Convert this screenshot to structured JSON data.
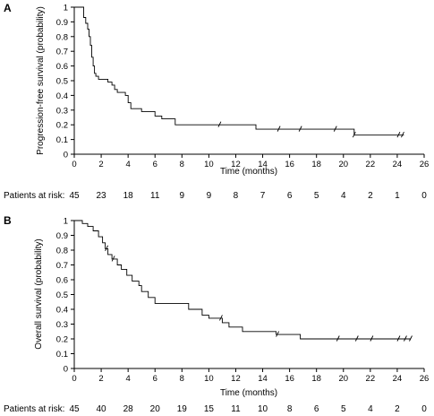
{
  "chart_data": [
    {
      "type": "line",
      "panel_label": "A",
      "xlabel": "Time (months)",
      "ylabel": "Progression-free survival (probability)",
      "xlim": [
        0,
        26
      ],
      "ylim": [
        0,
        1
      ],
      "x_ticks": [
        0,
        2,
        4,
        6,
        8,
        10,
        12,
        14,
        16,
        18,
        20,
        22,
        24,
        26
      ],
      "y_ticks": [
        "0",
        "0.1",
        "0.2",
        "0.3",
        "0.4",
        "0.5",
        "0.6",
        "0.7",
        "0.8",
        "0.9",
        "1"
      ],
      "grid": false,
      "step": true,
      "points": [
        [
          0,
          1.0
        ],
        [
          0.7,
          1.0
        ],
        [
          0.7,
          0.93
        ],
        [
          0.85,
          0.93
        ],
        [
          0.85,
          0.89
        ],
        [
          1.0,
          0.89
        ],
        [
          1.0,
          0.85
        ],
        [
          1.1,
          0.85
        ],
        [
          1.1,
          0.8
        ],
        [
          1.2,
          0.8
        ],
        [
          1.2,
          0.74
        ],
        [
          1.3,
          0.74
        ],
        [
          1.3,
          0.66
        ],
        [
          1.4,
          0.66
        ],
        [
          1.4,
          0.6
        ],
        [
          1.5,
          0.6
        ],
        [
          1.5,
          0.55
        ],
        [
          1.6,
          0.55
        ],
        [
          1.6,
          0.53
        ],
        [
          1.8,
          0.53
        ],
        [
          1.8,
          0.51
        ],
        [
          2.5,
          0.51
        ],
        [
          2.5,
          0.49
        ],
        [
          2.8,
          0.49
        ],
        [
          2.8,
          0.47
        ],
        [
          3.0,
          0.47
        ],
        [
          3.0,
          0.44
        ],
        [
          3.2,
          0.44
        ],
        [
          3.2,
          0.42
        ],
        [
          3.8,
          0.42
        ],
        [
          3.8,
          0.4
        ],
        [
          4.0,
          0.4
        ],
        [
          4.0,
          0.35
        ],
        [
          4.2,
          0.35
        ],
        [
          4.2,
          0.31
        ],
        [
          5.0,
          0.31
        ],
        [
          5.0,
          0.29
        ],
        [
          6.0,
          0.29
        ],
        [
          6.0,
          0.26
        ],
        [
          6.5,
          0.26
        ],
        [
          6.5,
          0.24
        ],
        [
          7.5,
          0.24
        ],
        [
          7.5,
          0.2
        ],
        [
          13.5,
          0.2
        ],
        [
          13.5,
          0.17
        ],
        [
          20.8,
          0.17
        ],
        [
          20.8,
          0.13
        ],
        [
          24.5,
          0.13
        ]
      ],
      "censor_ticks": [
        10.8,
        15.2,
        16.8,
        19.4,
        20.8,
        24.1,
        24.4
      ],
      "risk_label": "Patients at risk:",
      "risk_times": [
        0,
        2,
        4,
        6,
        8,
        10,
        12,
        14,
        16,
        18,
        20,
        22,
        24,
        26
      ],
      "risk_values": [
        "45",
        "23",
        "18",
        "11",
        "9",
        "9",
        "8",
        "7",
        "6",
        "5",
        "4",
        "2",
        "1",
        "0"
      ]
    },
    {
      "type": "line",
      "panel_label": "B",
      "xlabel": "Time (months)",
      "ylabel": "Overall survival (probability)",
      "xlim": [
        0,
        26
      ],
      "ylim": [
        0,
        1
      ],
      "x_ticks": [
        0,
        2,
        4,
        6,
        8,
        10,
        12,
        14,
        16,
        18,
        20,
        22,
        24,
        26
      ],
      "y_ticks": [
        "0",
        "0.1",
        "0.2",
        "0.3",
        "0.4",
        "0.5",
        "0.6",
        "0.7",
        "0.8",
        "0.9",
        "1"
      ],
      "grid": false,
      "step": true,
      "points": [
        [
          0,
          1.0
        ],
        [
          0.6,
          1.0
        ],
        [
          0.6,
          0.98
        ],
        [
          1.0,
          0.98
        ],
        [
          1.0,
          0.96
        ],
        [
          1.4,
          0.96
        ],
        [
          1.4,
          0.93
        ],
        [
          1.8,
          0.93
        ],
        [
          1.8,
          0.89
        ],
        [
          2.1,
          0.89
        ],
        [
          2.1,
          0.85
        ],
        [
          2.3,
          0.85
        ],
        [
          2.3,
          0.81
        ],
        [
          2.5,
          0.81
        ],
        [
          2.5,
          0.77
        ],
        [
          2.8,
          0.77
        ],
        [
          2.8,
          0.74
        ],
        [
          3.2,
          0.74
        ],
        [
          3.2,
          0.7
        ],
        [
          3.5,
          0.7
        ],
        [
          3.5,
          0.67
        ],
        [
          3.9,
          0.67
        ],
        [
          3.9,
          0.63
        ],
        [
          4.3,
          0.63
        ],
        [
          4.3,
          0.59
        ],
        [
          4.8,
          0.59
        ],
        [
          4.8,
          0.56
        ],
        [
          5.0,
          0.56
        ],
        [
          5.0,
          0.52
        ],
        [
          5.5,
          0.52
        ],
        [
          5.5,
          0.48
        ],
        [
          6.0,
          0.48
        ],
        [
          6.0,
          0.44
        ],
        [
          8.5,
          0.44
        ],
        [
          8.5,
          0.4
        ],
        [
          9.5,
          0.4
        ],
        [
          9.5,
          0.36
        ],
        [
          10.0,
          0.36
        ],
        [
          10.0,
          0.34
        ],
        [
          11.0,
          0.34
        ],
        [
          11.0,
          0.31
        ],
        [
          11.5,
          0.31
        ],
        [
          11.5,
          0.28
        ],
        [
          12.5,
          0.28
        ],
        [
          12.5,
          0.25
        ],
        [
          15.0,
          0.25
        ],
        [
          15.0,
          0.23
        ],
        [
          16.8,
          0.23
        ],
        [
          16.8,
          0.2
        ],
        [
          25.0,
          0.2
        ]
      ],
      "censor_ticks": [
        2.4,
        2.9,
        10.9,
        15.1,
        19.6,
        21.0,
        22.1,
        24.1,
        24.6,
        25.0
      ],
      "risk_label": "Patients at risk:",
      "risk_times": [
        0,
        2,
        4,
        6,
        8,
        10,
        12,
        14,
        16,
        18,
        20,
        22,
        24,
        26
      ],
      "risk_values": [
        "45",
        "40",
        "28",
        "20",
        "19",
        "15",
        "11",
        "10",
        "8",
        "6",
        "5",
        "4",
        "2",
        "0"
      ]
    }
  ]
}
